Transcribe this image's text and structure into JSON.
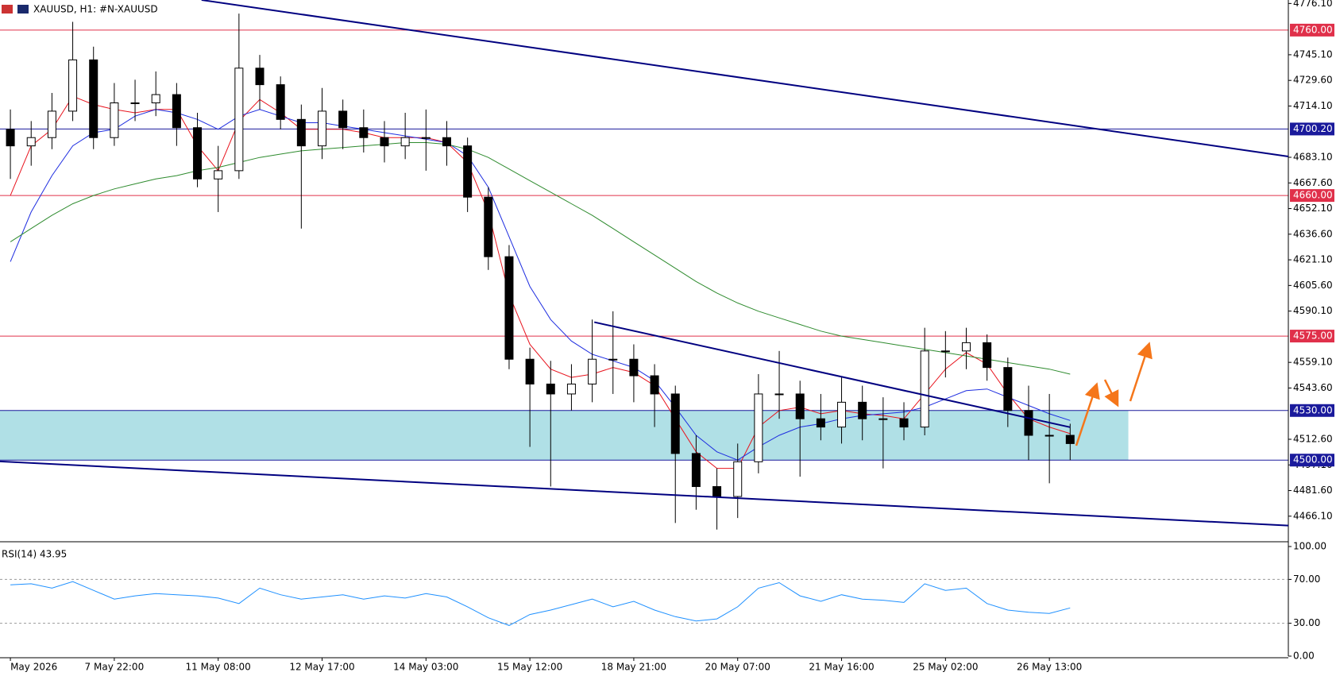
{
  "chart_data": {
    "type": "candlestick",
    "title": "XAUUSD, H1:  #N-XAUUSD",
    "categories": [
      "May 2026",
      null,
      null,
      null,
      null,
      "7 May 22:00",
      null,
      null,
      null,
      null,
      "11 May 08:00",
      null,
      null,
      null,
      null,
      "12 May 17:00",
      null,
      null,
      null,
      null,
      "14 May 03:00",
      null,
      null,
      null,
      null,
      "15 May 12:00",
      null,
      null,
      null,
      null,
      "18 May 21:00",
      null,
      null,
      null,
      null,
      "20 May 07:00",
      null,
      null,
      null,
      null,
      "21 May 16:00",
      null,
      null,
      null,
      null,
      "25 May 02:00",
      null,
      null,
      null,
      null,
      "26 May 13:00",
      null
    ],
    "open": [
      4700,
      4690,
      4695,
      4711,
      4742,
      4695,
      4716,
      4716,
      4721,
      4701,
      4670,
      4675,
      4737,
      4727,
      4706,
      4690,
      4711,
      4701,
      4695,
      4690,
      4695,
      4695,
      4690,
      4659,
      4623,
      4561,
      4546,
      4540,
      4546,
      4561,
      4561,
      4551,
      4540,
      4504,
      4484,
      4478,
      4499,
      4540,
      4540,
      4525,
      4520,
      4535,
      4525,
      4525,
      4520,
      4566,
      4566,
      4571,
      4556,
      4530,
      4515,
      4515
    ],
    "high": [
      4712,
      4705,
      4722,
      4765,
      4750,
      4728,
      4730,
      4735,
      4728,
      4710,
      4690,
      4770,
      4745,
      4732,
      4715,
      4725,
      4718,
      4712,
      4705,
      4710,
      4712,
      4705,
      4695,
      4665,
      4630,
      4568,
      4560,
      4558,
      4585,
      4590,
      4570,
      4558,
      4545,
      4515,
      4495,
      4510,
      4552,
      4566,
      4548,
      4540,
      4550,
      4545,
      4538,
      4535,
      4580,
      4578,
      4580,
      4576,
      4562,
      4545,
      4540,
      4522
    ],
    "low": [
      4670,
      4678,
      4688,
      4705,
      4688,
      4690,
      4705,
      4708,
      4690,
      4665,
      4650,
      4670,
      4712,
      4700,
      4640,
      4682,
      4688,
      4686,
      4680,
      4682,
      4675,
      4678,
      4650,
      4615,
      4555,
      4508,
      4484,
      4530,
      4535,
      4540,
      4535,
      4520,
      4462,
      4470,
      4458,
      4465,
      4492,
      4525,
      4490,
      4512,
      4510,
      4512,
      4495,
      4512,
      4515,
      4550,
      4555,
      4548,
      4520,
      4500,
      4486,
      4500
    ],
    "close": [
      4690,
      4695,
      4711,
      4742,
      4695,
      4716,
      4716,
      4721,
      4701,
      4670,
      4675,
      4737,
      4727,
      4706,
      4690,
      4711,
      4701,
      4695,
      4690,
      4695,
      4695,
      4690,
      4659,
      4623,
      4561,
      4546,
      4540,
      4546,
      4561,
      4561,
      4551,
      4540,
      4504,
      4484,
      4478,
      4499,
      4540,
      4540,
      4525,
      4520,
      4535,
      4525,
      4525,
      4520,
      4566,
      4566,
      4571,
      4556,
      4530,
      4515,
      4515,
      4510
    ],
    "ma": [
      {
        "color": "#e8141e",
        "values": [
          4660,
          4690,
          4700,
          4720,
          4715,
          4712,
          4710,
          4712,
          4712,
          4690,
          4675,
          4705,
          4718,
          4710,
          4700,
          4700,
          4700,
          4698,
          4695,
          4695,
          4695,
          4692,
          4680,
          4650,
          4600,
          4570,
          4555,
          4550,
          4552,
          4556,
          4553,
          4545,
          4525,
          4505,
          4495,
          4495,
          4520,
          4530,
          4532,
          4528,
          4530,
          4528,
          4527,
          4525,
          4540,
          4555,
          4565,
          4558,
          4540,
          4525,
          4520,
          4516
        ]
      },
      {
        "color": "#1e2de0",
        "values": [
          4620,
          4650,
          4672,
          4690,
          4698,
          4700,
          4708,
          4712,
          4710,
          4706,
          4700,
          4708,
          4712,
          4708,
          4704,
          4704,
          4702,
          4700,
          4698,
          4696,
          4694,
          4692,
          4684,
          4665,
          4635,
          4605,
          4585,
          4572,
          4564,
          4560,
          4556,
          4548,
          4532,
          4515,
          4505,
          4500,
          4508,
          4515,
          4520,
          4522,
          4525,
          4527,
          4528,
          4529,
          4532,
          4537,
          4542,
          4543,
          4538,
          4533,
          4528,
          4524
        ]
      },
      {
        "color": "#2e8b2e",
        "values": [
          4632,
          4640,
          4648,
          4655,
          4660,
          4664,
          4667,
          4670,
          4672,
          4675,
          4677,
          4680,
          4683,
          4685,
          4687,
          4688,
          4689,
          4690,
          4691,
          4692,
          4692,
          4691,
          4688,
          4683,
          4676,
          4669,
          4662,
          4655,
          4648,
          4640,
          4632,
          4624,
          4616,
          4608,
          4601,
          4595,
          4590,
          4586,
          4582,
          4578,
          4575,
          4573,
          4571,
          4569,
          4567,
          4565,
          4563,
          4561,
          4559,
          4557,
          4555,
          4552
        ]
      }
    ],
    "ylim": [
      4451.6,
      4778.2
    ],
    "yticks": [
      {
        "value": 4776.1,
        "label": "4776.10"
      },
      {
        "value": 4745.1,
        "label": "4745.10"
      },
      {
        "value": 4729.6,
        "label": "4729.60"
      },
      {
        "value": 4714.1,
        "label": "4714.10"
      },
      {
        "value": 4683.1,
        "label": "4683.10"
      },
      {
        "value": 4667.6,
        "label": "4667.60"
      },
      {
        "value": 4652.1,
        "label": "4652.10"
      },
      {
        "value": 4636.6,
        "label": "4636.60"
      },
      {
        "value": 4621.1,
        "label": "4621.10"
      },
      {
        "value": 4605.6,
        "label": "4605.60"
      },
      {
        "value": 4590.1,
        "label": "4590.10"
      },
      {
        "value": 4559.1,
        "label": "4559.10"
      },
      {
        "value": 4543.6,
        "label": "4543.60"
      },
      {
        "value": 4512.6,
        "label": "4512.60"
      },
      {
        "value": 4497.1,
        "label": "4497.10"
      },
      {
        "value": 4481.6,
        "label": "4481.60"
      },
      {
        "value": 4466.1,
        "label": "4466.10"
      }
    ],
    "levels": [
      {
        "value": 4760,
        "label": "4760.00",
        "color": "#e0304a"
      },
      {
        "value": 4700.2,
        "label": "4700.20",
        "color": "#1a1a9c"
      },
      {
        "value": 4660,
        "label": "4660.00",
        "color": "#e0304a"
      },
      {
        "value": 4575,
        "label": "4575.00",
        "color": "#e0304a"
      },
      {
        "value": 4530,
        "label": "4530.00",
        "color": "#1a1a9c"
      },
      {
        "value": 4500,
        "label": "4500.00",
        "color": "#1a1a9c"
      }
    ],
    "zone": {
      "from": 4500,
      "to": 4530,
      "x_end": 54.3,
      "color": "#b0e0e6"
    },
    "trendlines": [
      {
        "color": "#000080",
        "points": [
          [
            9.7,
            4778.2
          ],
          [
            62,
            4683.6
          ]
        ]
      },
      {
        "color": "#000080",
        "points": [
          [
            0,
            4499.2
          ],
          [
            62,
            4460.4
          ]
        ]
      },
      {
        "color": "#000080",
        "points": [
          [
            28.6,
            4583.4
          ],
          [
            51.5,
            4519.9
          ]
        ]
      }
    ],
    "rsi": {
      "label": "RSI(14) 43.95",
      "color": "#1e90ff",
      "values": [
        65,
        66,
        62,
        68,
        60,
        52,
        55,
        57,
        56,
        55,
        53,
        48,
        62,
        56,
        52,
        54,
        56,
        52,
        55,
        53,
        57,
        54,
        45,
        35,
        28,
        38,
        42,
        47,
        52,
        45,
        50,
        42,
        36,
        32,
        34,
        45,
        62,
        67,
        55,
        50,
        56,
        52,
        51,
        49,
        66,
        60,
        62,
        48,
        42,
        40,
        39,
        43.95
      ],
      "ylim": [
        0,
        100
      ],
      "yticks": [
        {
          "value": 100,
          "label": "100.00"
        },
        {
          "value": 70,
          "label": "70.00"
        },
        {
          "value": 30,
          "label": "30.00"
        },
        {
          "value": 0,
          "label": "0.00"
        }
      ]
    }
  }
}
